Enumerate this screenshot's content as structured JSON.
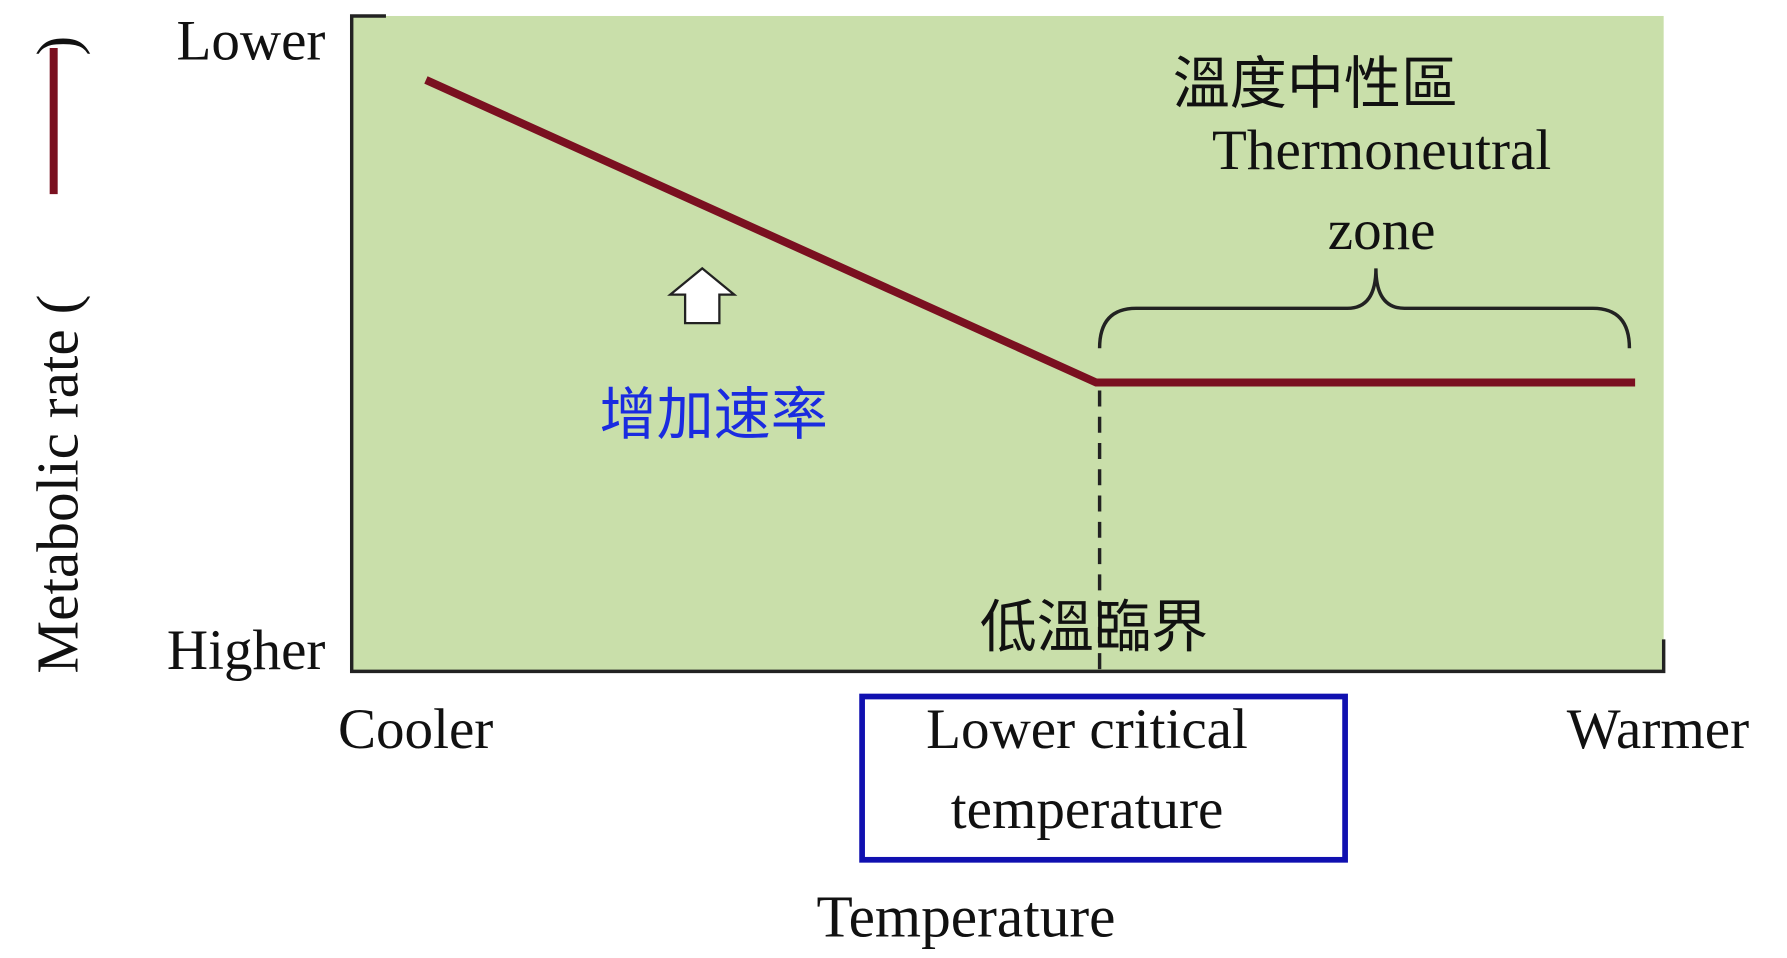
{
  "y_axis": {
    "label": "Metabolic rate (",
    "label_end": ")",
    "top": "Lower",
    "bottom": "Higher"
  },
  "x_axis": {
    "label": "Temperature",
    "left": "Cooler",
    "right": "Warmer",
    "marker": [
      "Lower critical",
      "temperature"
    ]
  },
  "annotations": {
    "zone_zh": "溫度中性區",
    "zone_en": [
      "Thermoneutral",
      "zone"
    ],
    "rate_zh": "增加速率",
    "critical_zh": "低溫臨界"
  }
}
